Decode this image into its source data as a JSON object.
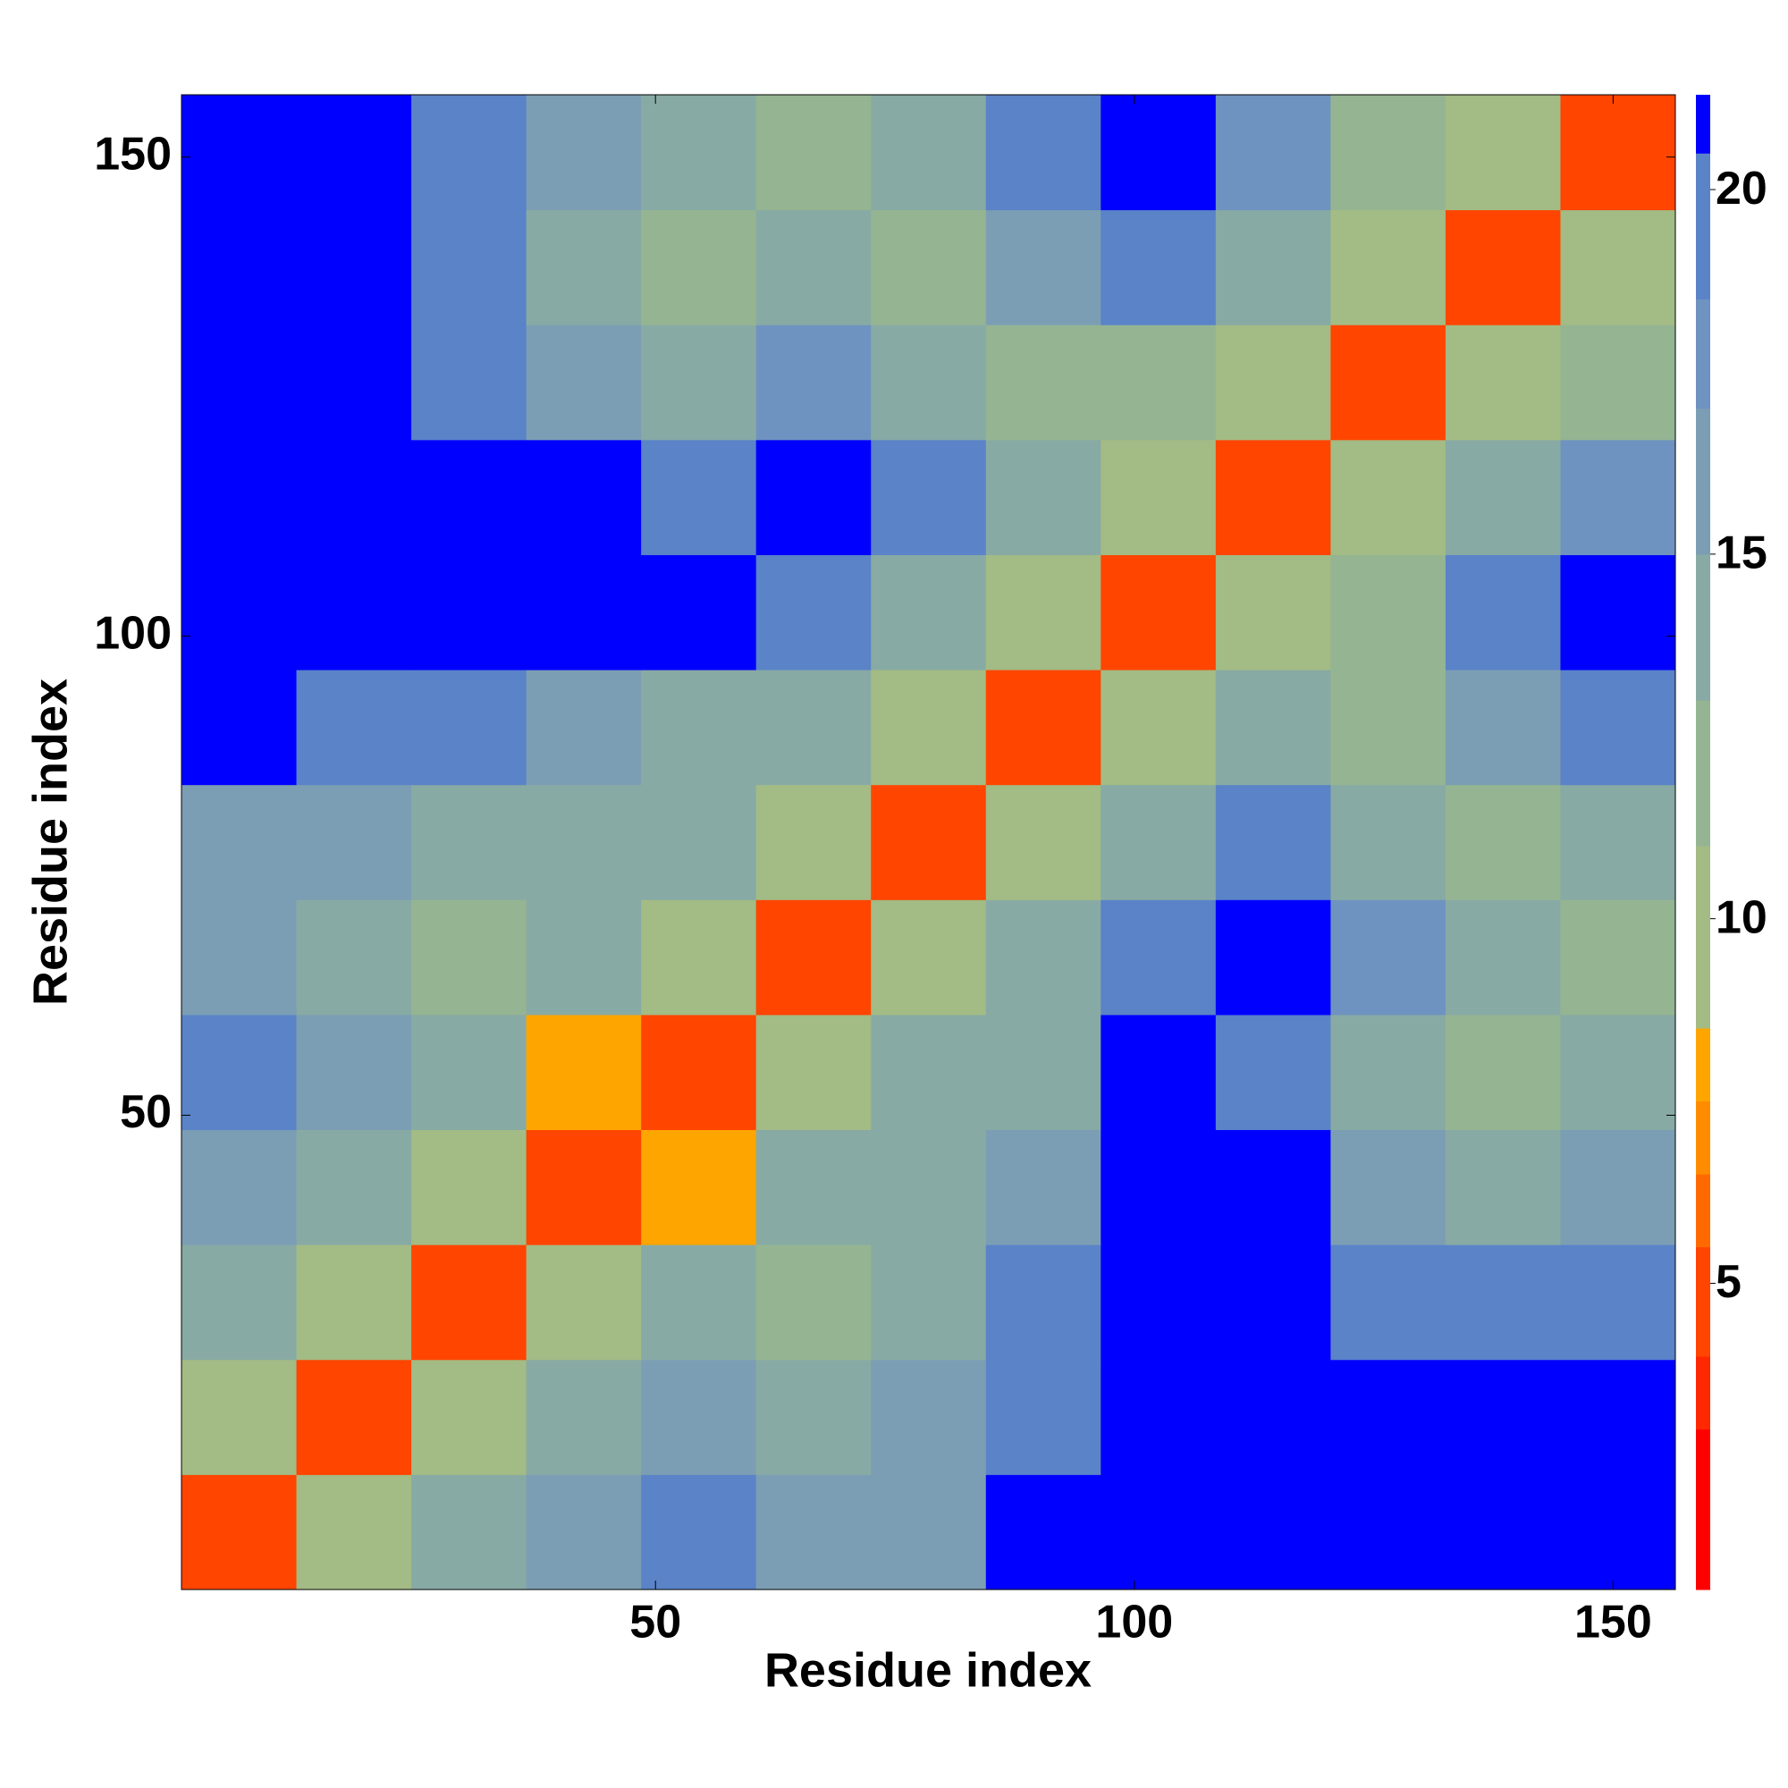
{
  "chart_data": {
    "type": "heatmap",
    "x_label": "Residue index",
    "y_label": "Residue index",
    "xbins": [
      0.5,
      12.5,
      24.5,
      36.5,
      48.5,
      60.5,
      72.5,
      84.5,
      96.5,
      108.5,
      120.5,
      132.5,
      144.5,
      156.5
    ],
    "ybins": [
      0.5,
      12.5,
      24.5,
      36.5,
      48.5,
      60.5,
      72.5,
      84.5,
      96.5,
      108.5,
      120.5,
      132.5,
      144.5,
      156.5
    ],
    "z": [
      [
        5,
        10,
        14,
        17,
        19,
        17,
        17,
        21,
        21,
        21,
        21,
        21,
        21
      ],
      [
        10,
        5,
        10,
        14,
        16,
        15,
        16,
        20,
        21,
        21,
        21,
        21,
        21
      ],
      [
        14,
        10,
        5,
        9,
        14,
        13,
        14,
        19,
        21,
        21,
        20,
        20,
        20
      ],
      [
        17,
        14,
        9,
        5,
        8,
        14,
        14,
        16,
        21,
        21,
        17,
        15,
        16
      ],
      [
        19,
        16,
        14,
        8,
        5,
        9,
        15,
        15,
        21,
        20,
        15,
        13,
        15
      ],
      [
        17,
        15,
        13,
        14,
        9,
        5,
        9,
        14,
        20,
        21,
        18,
        14,
        13
      ],
      [
        17,
        16,
        14,
        14,
        15,
        9,
        5,
        9,
        14,
        19,
        15,
        13,
        15
      ],
      [
        21,
        20,
        19,
        16,
        15,
        14,
        9,
        5,
        10,
        15,
        13,
        16,
        20
      ],
      [
        21,
        21,
        21,
        21,
        21,
        20,
        14,
        10,
        5,
        9,
        13,
        19,
        21
      ],
      [
        21,
        21,
        21,
        21,
        20,
        21,
        19,
        15,
        9,
        5,
        9,
        14,
        18
      ],
      [
        21,
        21,
        20,
        17,
        15,
        18,
        15,
        13,
        13,
        9,
        5,
        9,
        13
      ],
      [
        21,
        21,
        20,
        15,
        13,
        14,
        13,
        16,
        19,
        14,
        9,
        5,
        9
      ],
      [
        21,
        21,
        20,
        16,
        15,
        13,
        15,
        20,
        21,
        18,
        13,
        9,
        5
      ]
    ],
    "xlim": [
      0.5,
      156.5
    ],
    "ylim": [
      0.5,
      156.5
    ],
    "xticks": [
      50,
      100,
      150
    ],
    "yticks": [
      50,
      100,
      150
    ],
    "clim": [
      0.8,
      21.3
    ],
    "cticks": [
      5,
      10,
      15,
      20
    ],
    "colorscale": [
      {
        "upper": 3,
        "color": "#ff0000"
      },
      {
        "upper": 4,
        "color": "#ff2800"
      },
      {
        "upper": 5.5,
        "color": "#ff4500"
      },
      {
        "upper": 6.5,
        "color": "#ff6a00"
      },
      {
        "upper": 7.5,
        "color": "#ff8c00"
      },
      {
        "upper": 8.5,
        "color": "#ffa500"
      },
      {
        "upper": 11,
        "color": "#a3bb84"
      },
      {
        "upper": 13,
        "color": "#95b592"
      },
      {
        "upper": 15,
        "color": "#88aaa4"
      },
      {
        "upper": 17,
        "color": "#7c9eb4"
      },
      {
        "upper": 18.5,
        "color": "#6f93c0"
      },
      {
        "upper": 20.5,
        "color": "#5a83c8"
      },
      {
        "upper": 21.3,
        "color": "#0000ff"
      }
    ]
  }
}
